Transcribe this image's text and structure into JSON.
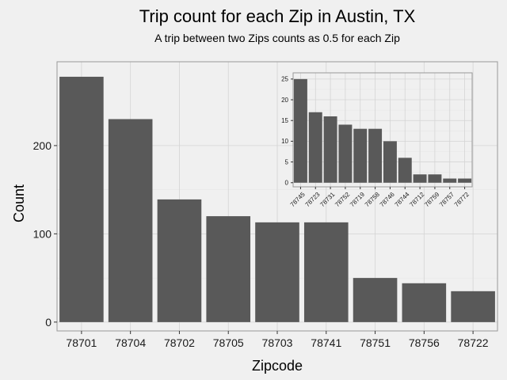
{
  "chart_data": {
    "type": "bar",
    "title": "Trip count for each Zip in Austin, TX",
    "subtitle": "A trip between two Zips counts as 0.5 for each Zip",
    "xlabel": "Zipcode",
    "ylabel": "Count",
    "categories": [
      "78701",
      "78704",
      "78702",
      "78705",
      "78703",
      "78741",
      "78751",
      "78756",
      "78722"
    ],
    "values": [
      278,
      230,
      139,
      120,
      113,
      113,
      50,
      44,
      35
    ],
    "ylim": [
      -10,
      295
    ],
    "yticks": [
      0,
      100,
      200
    ],
    "grid": true,
    "bar_color": "#595959",
    "inset": {
      "type": "bar",
      "categories": [
        "78745",
        "78723",
        "78731",
        "78752",
        "78719",
        "78758",
        "78746",
        "78744",
        "78712",
        "78759",
        "78757",
        "78772"
      ],
      "values": [
        25,
        17,
        16,
        14,
        13,
        13,
        10,
        6,
        2,
        2,
        1,
        1
      ],
      "ylim": [
        -1,
        26.5
      ],
      "yticks": [
        0,
        5,
        10,
        15,
        20,
        25
      ],
      "grid": true,
      "bar_color": "#595959"
    }
  }
}
